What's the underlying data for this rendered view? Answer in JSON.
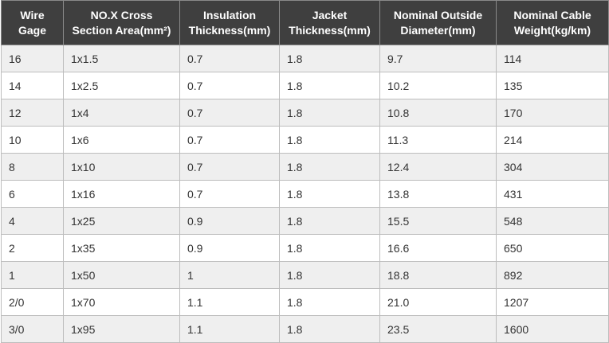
{
  "table": {
    "headers": [
      [
        "Wire",
        "Gage"
      ],
      [
        "NO.X Cross",
        "Section Area(mm²)"
      ],
      [
        "Insulation",
        "Thickness(mm)"
      ],
      [
        "Jacket",
        "Thickness(mm)"
      ],
      [
        "Nominal Outside",
        "Diameter(mm)"
      ],
      [
        "Nominal Cable",
        "Weight(kg/km)"
      ]
    ],
    "rows": [
      [
        "16",
        "1x1.5",
        "0.7",
        "1.8",
        "9.7",
        "114"
      ],
      [
        "14",
        "1x2.5",
        "0.7",
        "1.8",
        "10.2",
        "135"
      ],
      [
        "12",
        "1x4",
        "0.7",
        "1.8",
        "10.8",
        "170"
      ],
      [
        "10",
        "1x6",
        "0.7",
        "1.8",
        "11.3",
        "214"
      ],
      [
        "8",
        "1x10",
        "0.7",
        "1.8",
        "12.4",
        "304"
      ],
      [
        "6",
        "1x16",
        "0.7",
        "1.8",
        "13.8",
        "431"
      ],
      [
        "4",
        "1x25",
        "0.9",
        "1.8",
        "15.5",
        "548"
      ],
      [
        "2",
        "1x35",
        "0.9",
        "1.8",
        "16.6",
        "650"
      ],
      [
        "1",
        "1x50",
        "1",
        "1.8",
        "18.8",
        "892"
      ],
      [
        "2/0",
        "1x70",
        "1.1",
        "1.8",
        "21.0",
        "1207"
      ],
      [
        "3/0",
        "1x95",
        "1.1",
        "1.8",
        "23.5",
        "1600"
      ]
    ],
    "colors": {
      "header_bg": "#3f3f3f",
      "header_text": "#ffffff",
      "row_odd_bg": "#efefef",
      "row_even_bg": "#ffffff",
      "cell_text": "#333333",
      "border": "#bdbdbd"
    }
  }
}
